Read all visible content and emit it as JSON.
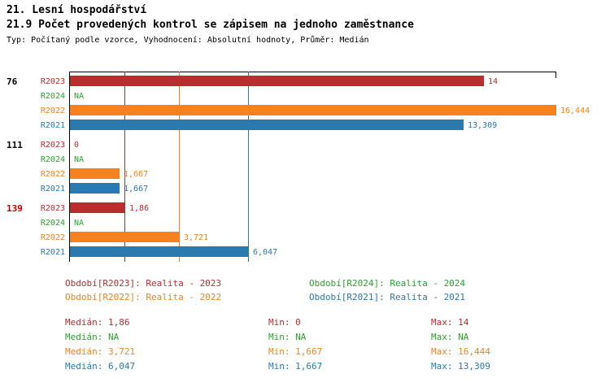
{
  "header": {
    "title": "21. Lesní hospodářství",
    "subtitle": "21.9 Počet provedených kontrol se zápisem na jednoho zaměstnance",
    "meta": "Typ: Počítaný podle vzorce, Vyhodnocení: Absolutní hodnoty, Průměr: Medián"
  },
  "colors": {
    "R2023": "#b82e2e",
    "R2024": "#2da32d",
    "R2022": "#f5821e",
    "R2021": "#2a7ab0",
    "highlight": "#cc0000",
    "axis": "#000000"
  },
  "chart_data": {
    "type": "bar",
    "orientation": "horizontal",
    "xlim": [
      0,
      16.444
    ],
    "series_order": [
      "R2023",
      "R2024",
      "R2022",
      "R2021"
    ],
    "groups": [
      {
        "label": "76",
        "highlighted": false,
        "bars": [
          {
            "series": "R2023",
            "value": 14,
            "display": "14"
          },
          {
            "series": "R2024",
            "value": null,
            "display": "NA"
          },
          {
            "series": "R2022",
            "value": 16.444,
            "display": "16,444"
          },
          {
            "series": "R2021",
            "value": 13.309,
            "display": "13,309"
          }
        ]
      },
      {
        "label": "111",
        "highlighted": false,
        "bars": [
          {
            "series": "R2023",
            "value": 0,
            "display": "0"
          },
          {
            "series": "R2024",
            "value": null,
            "display": "NA"
          },
          {
            "series": "R2022",
            "value": 1.667,
            "display": "1,667"
          },
          {
            "series": "R2021",
            "value": 1.667,
            "display": "1,667"
          }
        ]
      },
      {
        "label": "139",
        "highlighted": true,
        "bars": [
          {
            "series": "R2023",
            "value": 1.86,
            "display": "1,86"
          },
          {
            "series": "R2024",
            "value": null,
            "display": "NA"
          },
          {
            "series": "R2022",
            "value": 3.721,
            "display": "3,721"
          },
          {
            "series": "R2021",
            "value": 6.047,
            "display": "6,047"
          }
        ]
      }
    ],
    "median_lines": [
      {
        "series": "R2023",
        "value": 1.86
      },
      {
        "series": "R2022",
        "value": 3.721
      },
      {
        "series": "R2021",
        "value": 6.047
      }
    ]
  },
  "legend": [
    {
      "series": "R2023",
      "text": "Období[R2023]: Realita - 2023"
    },
    {
      "series": "R2024",
      "text": "Období[R2024]: Realita - 2024"
    },
    {
      "series": "R2022",
      "text": "Období[R2022]: Realita - 2022"
    },
    {
      "series": "R2021",
      "text": "Období[R2021]: Realita - 2021"
    }
  ],
  "stats": [
    {
      "series": "R2023",
      "median": "Medián: 1,86",
      "min": "Min: 0",
      "max": "Max: 14"
    },
    {
      "series": "R2024",
      "median": "Medián: NA",
      "min": "Min: NA",
      "max": "Max: NA"
    },
    {
      "series": "R2022",
      "median": "Medián: 3,721",
      "min": "Min: 1,667",
      "max": "Max: 16,444"
    },
    {
      "series": "R2021",
      "median": "Medián: 6,047",
      "min": "Min: 1,667",
      "max": "Max: 13,309"
    }
  ]
}
